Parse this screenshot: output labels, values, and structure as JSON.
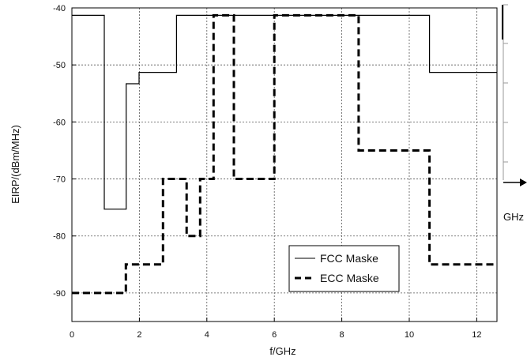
{
  "chart_data": {
    "type": "line",
    "title": "",
    "xlabel": "f/GHz",
    "ylabel": "EIRP/(dBm/MHz)",
    "xlim": [
      0,
      12.6
    ],
    "ylim": [
      -95,
      -40
    ],
    "x_ticks": [
      "0",
      "2",
      "4",
      "6",
      "8",
      "10",
      "12"
    ],
    "y_ticks": [
      "-40",
      "-50",
      "-60",
      "-70",
      "-80",
      "-90"
    ],
    "grid": true,
    "legend_position": "bottom-right",
    "series": [
      {
        "name": "FCC Maske",
        "style": "solid",
        "color": "#000000",
        "x": [
          0,
          0.96,
          0.96,
          1.61,
          1.61,
          1.99,
          1.99,
          3.1,
          3.1,
          10.6,
          10.6,
          12.6
        ],
        "y": [
          -41.3,
          -41.3,
          -75.3,
          -75.3,
          -53.3,
          -53.3,
          -51.3,
          -51.3,
          -41.3,
          -41.3,
          -51.3,
          -51.3
        ]
      },
      {
        "name": "ECC Maske",
        "style": "dashed",
        "color": "#000000",
        "x": [
          0,
          1.6,
          1.6,
          2.7,
          2.7,
          3.4,
          3.4,
          3.8,
          3.8,
          4.2,
          4.2,
          4.8,
          4.8,
          6.0,
          6.0,
          8.5,
          8.5,
          10.6,
          10.6,
          12.6
        ],
        "y": [
          -90,
          -90,
          -85,
          -85,
          -70,
          -70,
          -80,
          -80,
          -70,
          -70,
          -41.3,
          -41.3,
          -70,
          -70,
          -41.3,
          -41.3,
          -65,
          -65,
          -85,
          -85
        ]
      }
    ]
  },
  "extra": {
    "right_label": "GHz"
  }
}
